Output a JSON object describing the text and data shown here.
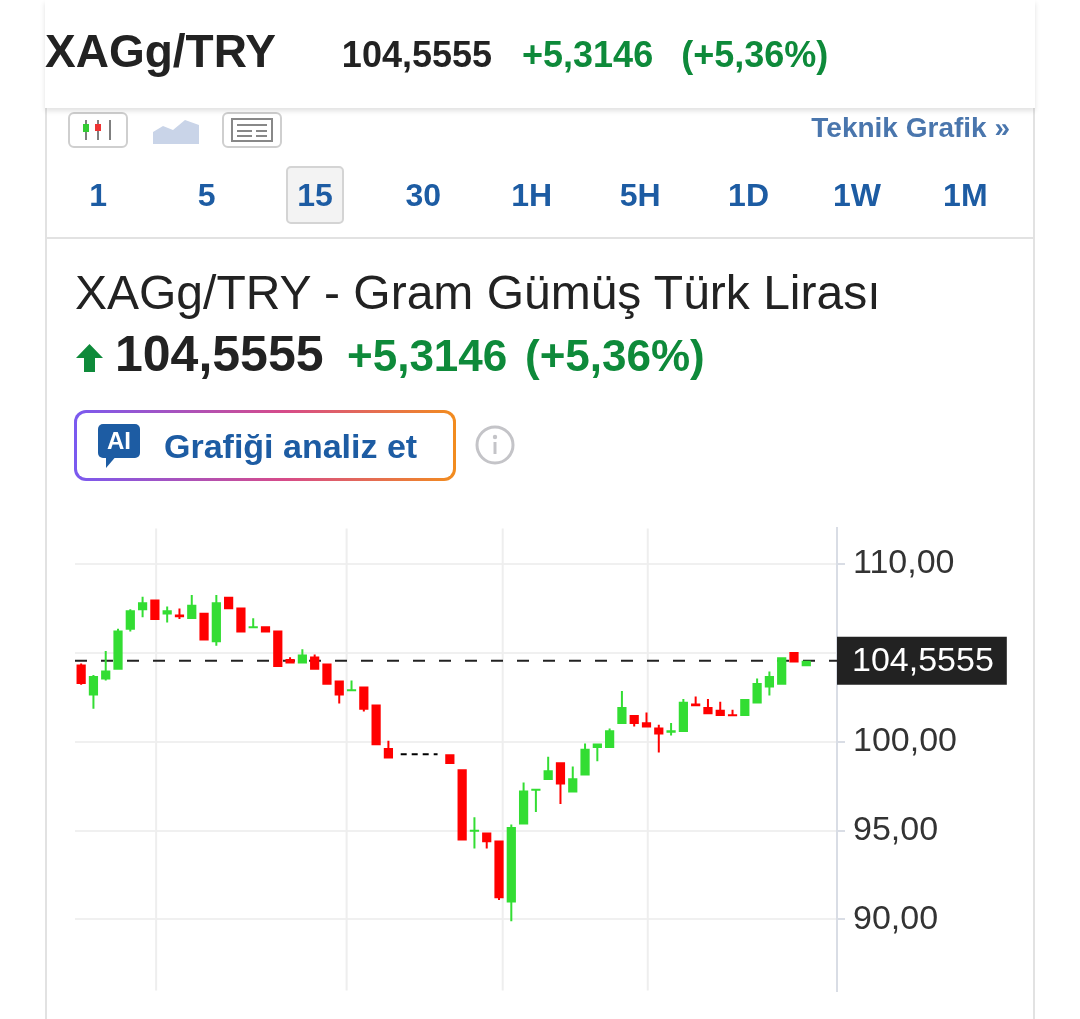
{
  "chart_data": {
    "type": "candlestick",
    "title": "XAGg/TRY - Gram Gümüş Türk Lirası",
    "annotations": [
      "XAGg/TRY",
      "104,5555",
      "+5,3146",
      "(+5,36%)",
      "Teknik Grafik »",
      "1 5 15 30 1H 5H 1D 1W 1M",
      "104,5555",
      "+5,3146",
      "(+5,36%)",
      "AI",
      "Grafiği analiz et"
    ],
    "categories": [
      null,
      null,
      null,
      null,
      null,
      null,
      null,
      null,
      null,
      null,
      null,
      null,
      null,
      null,
      null,
      null,
      null,
      null,
      null,
      null,
      null,
      null,
      null,
      null,
      null,
      null,
      null,
      null,
      null,
      null,
      null,
      null,
      null,
      null,
      null,
      null,
      null,
      null,
      null,
      null,
      null,
      null,
      null,
      null,
      null,
      null,
      null,
      null,
      null,
      null,
      null,
      null,
      null,
      null,
      null,
      null,
      null,
      null,
      null,
      null,
      null,
      null
    ],
    "ohlc": [
      [
        104.35,
        104.4,
        103.2,
        103.25
      ],
      [
        102.6,
        103.75,
        101.85,
        103.7
      ],
      [
        103.5,
        105.1,
        103.45,
        104.0
      ],
      [
        104.05,
        106.35,
        104.05,
        106.25
      ],
      [
        106.3,
        107.45,
        106.2,
        107.4
      ],
      [
        107.4,
        108.15,
        107.0,
        107.85
      ],
      [
        108.0,
        108.0,
        106.85,
        106.85
      ],
      [
        107.15,
        107.6,
        106.7,
        107.4
      ],
      [
        107.15,
        107.5,
        106.9,
        107.0
      ],
      [
        106.9,
        108.25,
        106.9,
        107.7
      ],
      [
        107.25,
        107.25,
        105.7,
        105.7
      ],
      [
        105.6,
        108.25,
        105.4,
        107.85
      ],
      [
        108.15,
        108.15,
        107.45,
        107.45
      ],
      [
        107.55,
        107.55,
        106.15,
        106.15
      ],
      [
        106.45,
        106.95,
        106.45,
        106.5
      ],
      [
        106.5,
        106.5,
        106.15,
        106.15
      ],
      [
        106.25,
        106.25,
        104.2,
        104.2
      ],
      [
        104.65,
        104.75,
        104.4,
        104.4
      ],
      [
        104.4,
        105.2,
        104.4,
        104.9
      ],
      [
        104.8,
        104.9,
        104.05,
        104.05
      ],
      [
        104.4,
        104.4,
        103.2,
        103.2
      ],
      [
        103.45,
        103.45,
        102.15,
        102.6
      ],
      [
        102.9,
        103.45,
        102.9,
        102.95
      ],
      [
        103.1,
        103.1,
        101.7,
        101.8
      ],
      [
        102.1,
        102.1,
        99.8,
        99.8
      ],
      [
        99.65,
        100.05,
        99.05,
        99.05
      ],
      null,
      null,
      null,
      null,
      [
        99.3,
        99.3,
        98.75,
        98.75
      ],
      [
        98.45,
        98.45,
        94.45,
        94.45
      ],
      [
        94.95,
        95.75,
        94.0,
        95.05
      ],
      [
        94.9,
        94.9,
        94.0,
        94.35
      ],
      [
        94.45,
        94.45,
        91.1,
        91.2
      ],
      [
        90.95,
        95.35,
        89.9,
        95.2
      ],
      [
        95.35,
        97.7,
        95.35,
        97.25
      ],
      [
        97.3,
        97.35,
        96.05,
        97.35
      ],
      [
        97.85,
        99.15,
        97.85,
        98.4
      ],
      [
        98.85,
        98.85,
        96.5,
        97.6
      ],
      [
        97.15,
        98.6,
        97.15,
        97.95
      ],
      [
        98.1,
        99.9,
        98.1,
        99.6
      ],
      [
        99.65,
        99.9,
        98.9,
        99.9
      ],
      [
        99.65,
        100.75,
        99.65,
        100.65
      ],
      [
        101.0,
        102.85,
        101.0,
        101.95
      ],
      [
        101.5,
        101.5,
        100.85,
        101.0
      ],
      [
        101.1,
        101.65,
        100.8,
        100.8
      ],
      [
        100.8,
        100.95,
        99.4,
        100.4
      ],
      [
        100.5,
        101.05,
        100.35,
        100.65
      ],
      [
        100.55,
        102.4,
        100.55,
        102.25
      ],
      [
        102.15,
        102.55,
        102.0,
        102.0
      ],
      [
        101.95,
        102.4,
        101.55,
        101.55
      ],
      [
        101.8,
        102.25,
        101.45,
        101.45
      ],
      [
        101.55,
        101.8,
        101.45,
        101.45
      ],
      [
        101.45,
        102.4,
        101.45,
        102.4
      ],
      [
        102.15,
        103.55,
        102.15,
        103.3
      ],
      [
        103.05,
        103.95,
        102.6,
        103.7
      ],
      [
        103.2,
        104.75,
        103.2,
        104.75
      ],
      [
        105.05,
        105.05,
        104.45,
        104.45
      ],
      [
        104.25,
        104.55,
        104.25,
        104.55
      ],
      null,
      null
    ],
    "colors": [
      "#ff0000",
      "#33dd33",
      "#33dd33",
      "#33dd33",
      "#33dd33",
      "#33dd33",
      "#ff0000",
      "#33dd33",
      "#ff0000",
      "#33dd33",
      "#ff0000",
      "#33dd33",
      "#ff0000",
      "#ff0000",
      "#33dd33",
      "#ff0000",
      "#ff0000",
      "#ff0000",
      "#33dd33",
      "#ff0000",
      "#ff0000",
      "#ff0000",
      "#33dd33",
      "#ff0000",
      "#ff0000",
      "#ff0000",
      null,
      null,
      null,
      null,
      "#ff0000",
      "#ff0000",
      "#33dd33",
      "#ff0000",
      "#ff0000",
      "#33dd33",
      "#33dd33",
      "#33dd33",
      "#33dd33",
      "#ff0000",
      "#33dd33",
      "#33dd33",
      "#33dd33",
      "#33dd33",
      "#33dd33",
      "#ff0000",
      "#ff0000",
      "#ff0000",
      "#33dd33",
      "#33dd33",
      "#ff0000",
      "#ff0000",
      "#ff0000",
      "#ff0000",
      "#33dd33",
      "#33dd33",
      "#33dd33",
      "#33dd33",
      "#ff0000",
      "#33dd33",
      null,
      null
    ],
    "series": [
      {
        "type": "line",
        "color": "#000000",
        "line_style": "dashed",
        "values": [
          null,
          null,
          null,
          null,
          null,
          null,
          null,
          null,
          null,
          null,
          null,
          null,
          null,
          null,
          null,
          null,
          null,
          null,
          null,
          null,
          null,
          null,
          null,
          null,
          null,
          null,
          99.3,
          99.3,
          99.3,
          99.3,
          null,
          null,
          null,
          null,
          null,
          null,
          null,
          null,
          null,
          null,
          null,
          null,
          null,
          null,
          null,
          null,
          null,
          null,
          null,
          null,
          null,
          null,
          null,
          null,
          null,
          null,
          null,
          null,
          null,
          null,
          null,
          null
        ]
      }
    ],
    "ylim": [
      86,
      112
    ],
    "yticks": [
      {
        "value": 110,
        "label": "110,00"
      },
      {
        "value": 105,
        "label": null
      },
      {
        "value": 100,
        "label": "100,00"
      },
      {
        "value": 95,
        "label": "95,00"
      },
      {
        "value": 90,
        "label": "90,00"
      }
    ],
    "ref_lines": [
      {
        "axis": "y",
        "value": 104.5555,
        "label": "104,5555",
        "color": "#222222",
        "line_style": "dashed"
      }
    ],
    "grid": true,
    "tick_labels": "y"
  }
}
